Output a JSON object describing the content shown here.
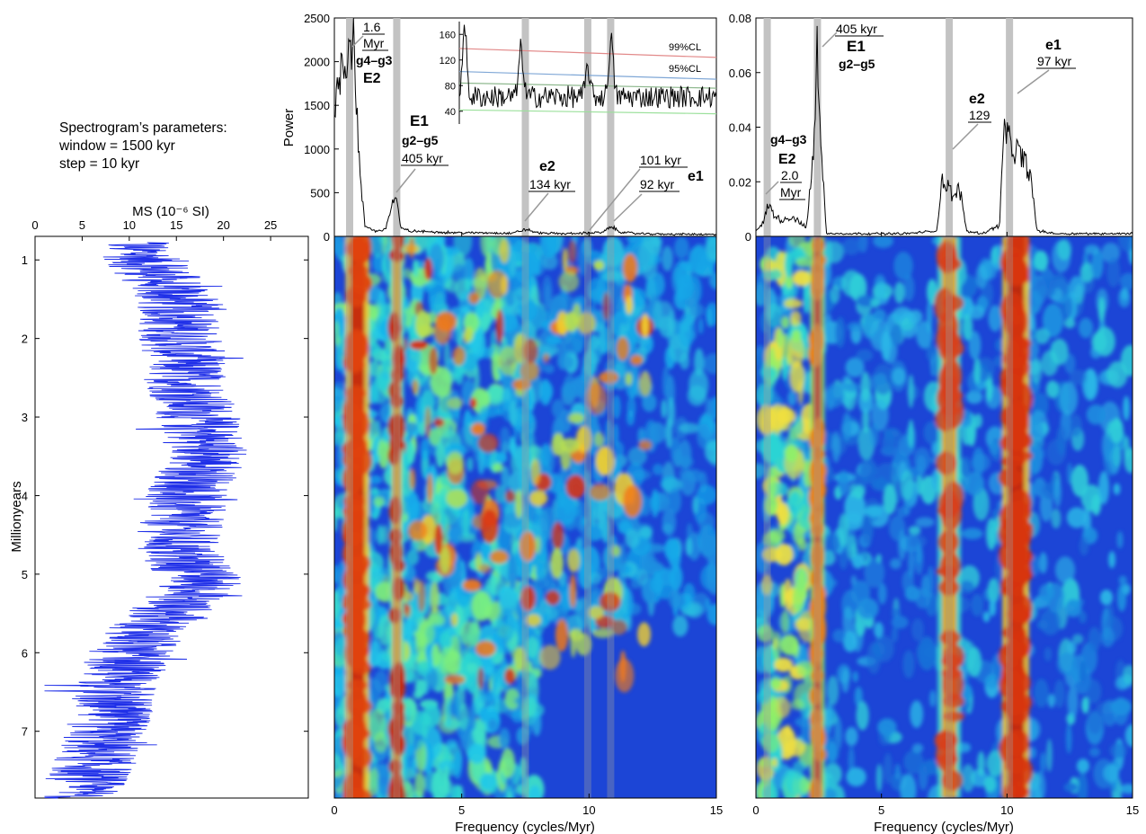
{
  "params": {
    "line1": "Spectrogram’s parameters:",
    "line2": "window = 1500 kyr",
    "line3": "step = 10 kyr"
  },
  "chart_data": [
    {
      "type": "line",
      "orientation": "vertical",
      "xlabel": "MS (10⁻⁶ SI)",
      "ylabel": "Millionyears",
      "xlim": [
        0,
        29
      ],
      "ylim": [
        0.7,
        7.85
      ],
      "y_reversed": true,
      "xticks": [
        "0",
        "5",
        "10",
        "15",
        "20",
        "25"
      ],
      "yticks": [
        "1",
        "2",
        "3",
        "4",
        "5",
        "6",
        "7"
      ],
      "series_color": "#1f2fe8",
      "trend": {
        "age_myr": [
          0.8,
          1.5,
          2.5,
          3.5,
          4.0,
          4.7,
          5.1,
          5.6,
          6.0,
          6.5,
          7.0,
          7.5,
          7.85
        ],
        "ms": [
          10.5,
          15,
          16,
          18.5,
          16,
          15,
          18,
          13,
          10,
          8.5,
          7.5,
          6,
          4.5
        ]
      }
    },
    {
      "type": "line",
      "xlabel": "Frequency (cycles/Myr)",
      "ylabel": "Power",
      "xlim": [
        0,
        15
      ],
      "ylim": [
        0,
        2500
      ],
      "xticks": [
        "0",
        "5",
        "10",
        "15"
      ],
      "yticks": [
        "0",
        "500",
        "1000",
        "1500",
        "2000",
        "2500"
      ],
      "highlight_bands": [
        0.6,
        2.45,
        7.5,
        9.95,
        10.85
      ],
      "spectrum": {
        "x": [
          0,
          0.2,
          0.5,
          0.7,
          0.8,
          1.0,
          1.2,
          1.6,
          2.0,
          2.3,
          2.45,
          2.6,
          3.0,
          4.0,
          5.0,
          6.0,
          7.0,
          7.5,
          8.0,
          9.0,
          10.0,
          10.5,
          10.9,
          11.2,
          12.0,
          13.0,
          14.0,
          15.0
        ],
        "y": [
          1200,
          1900,
          2150,
          2300,
          2050,
          700,
          120,
          60,
          80,
          400,
          440,
          90,
          60,
          50,
          40,
          40,
          35,
          80,
          40,
          30,
          40,
          45,
          110,
          50,
          30,
          25,
          25,
          20
        ]
      },
      "annotations": [
        {
          "top": "1.6",
          "bottom": "Myr",
          "name1": "g4–g3",
          "name2": "E2"
        },
        {
          "name1": "E1",
          "name2": "g2–g5",
          "period": "405 kyr"
        },
        {
          "name1": "e2",
          "period": "134 kyr"
        },
        {
          "period1": "101 kyr",
          "period2": "92 kyr",
          "name1": "e1"
        }
      ],
      "inset": {
        "yticks": [
          "40",
          "80",
          "120",
          "160"
        ],
        "ylim": [
          20,
          180
        ],
        "confidence_levels": [
          {
            "label": "99%CL",
            "color": "#e28a8a",
            "start": 138,
            "end": 124
          },
          {
            "label": "95%CL",
            "color": "#7fa7d6",
            "start": 102,
            "end": 90
          },
          {
            "label": "",
            "color": "#8fb98f",
            "start": 84,
            "end": 76
          },
          {
            "label": "",
            "color": "#9be09b",
            "start": 42,
            "end": 36
          }
        ]
      },
      "spectrogram": {
        "xlim": [
          0,
          15
        ],
        "ylim": [
          0.7,
          7.85
        ],
        "colormap": "jet"
      }
    },
    {
      "type": "line",
      "xlabel": "Frequency (cycles/Myr)",
      "ylabel": "",
      "xlim": [
        0,
        15
      ],
      "ylim": [
        0,
        0.08
      ],
      "xticks": [
        "0",
        "5",
        "10",
        "15"
      ],
      "yticks": [
        "0",
        "0.02",
        "0.04",
        "0.06",
        "0.08"
      ],
      "highlight_bands": [
        0.45,
        2.45,
        7.7,
        10.1
      ],
      "spectrum": {
        "x": [
          0,
          0.3,
          0.5,
          0.7,
          1.0,
          1.5,
          2.0,
          2.3,
          2.45,
          2.6,
          2.8,
          4.0,
          6.0,
          7.2,
          7.4,
          7.6,
          7.9,
          8.1,
          8.4,
          9.0,
          9.7,
          9.9,
          10.1,
          10.5,
          10.9,
          11.2,
          12.0,
          13.0,
          15.0
        ],
        "y": [
          0.002,
          0.005,
          0.012,
          0.008,
          0.006,
          0.007,
          0.003,
          0.03,
          0.07,
          0.035,
          0.001,
          0.001,
          0.001,
          0.002,
          0.02,
          0.019,
          0.014,
          0.018,
          0.002,
          0.001,
          0.004,
          0.04,
          0.034,
          0.03,
          0.024,
          0.002,
          0.001,
          0.001,
          0.001
        ]
      },
      "annotations": [
        {
          "name1": "g4–g3",
          "name2": "E2",
          "top": "2.0",
          "bottom": "Myr"
        },
        {
          "period": "405 kyr",
          "name1": "E1",
          "name2": "g2–g5"
        },
        {
          "name1": "e2",
          "period": "129"
        },
        {
          "name1": "e1",
          "period": "97 kyr"
        }
      ],
      "spectrogram": {
        "xlim": [
          0,
          15
        ],
        "ylim": [
          0.7,
          7.85
        ],
        "colormap": "jet"
      }
    }
  ]
}
